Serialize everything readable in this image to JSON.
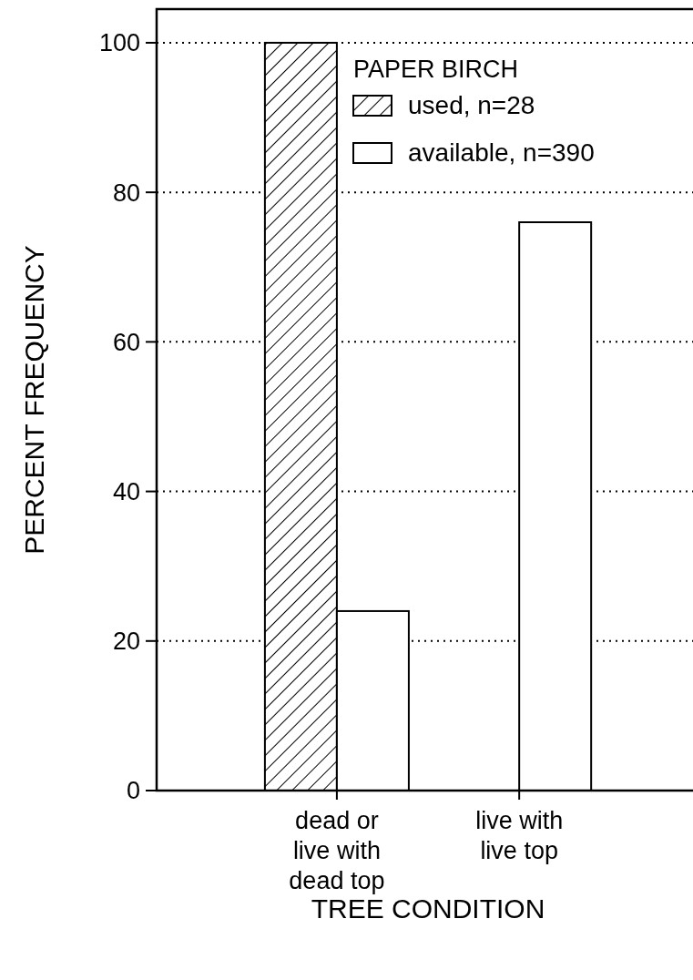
{
  "chart_data": {
    "type": "bar",
    "xlabel": "TREE CONDITION",
    "ylabel": "PERCENT FREQUENCY",
    "legend_title": "PAPER BIRCH",
    "categories": [
      "dead or live with dead top",
      "live with live top"
    ],
    "series": [
      {
        "name": "used, n=28",
        "color": "#000000",
        "values": [
          100,
          0
        ]
      },
      {
        "name": "available, n=390",
        "color": "#ffffff",
        "values": [
          24,
          76
        ]
      }
    ],
    "ylim": [
      0,
      104.5
    ],
    "yticks": [
      0,
      20,
      40,
      60,
      80,
      100
    ],
    "grid": "y",
    "legend": "top right"
  }
}
